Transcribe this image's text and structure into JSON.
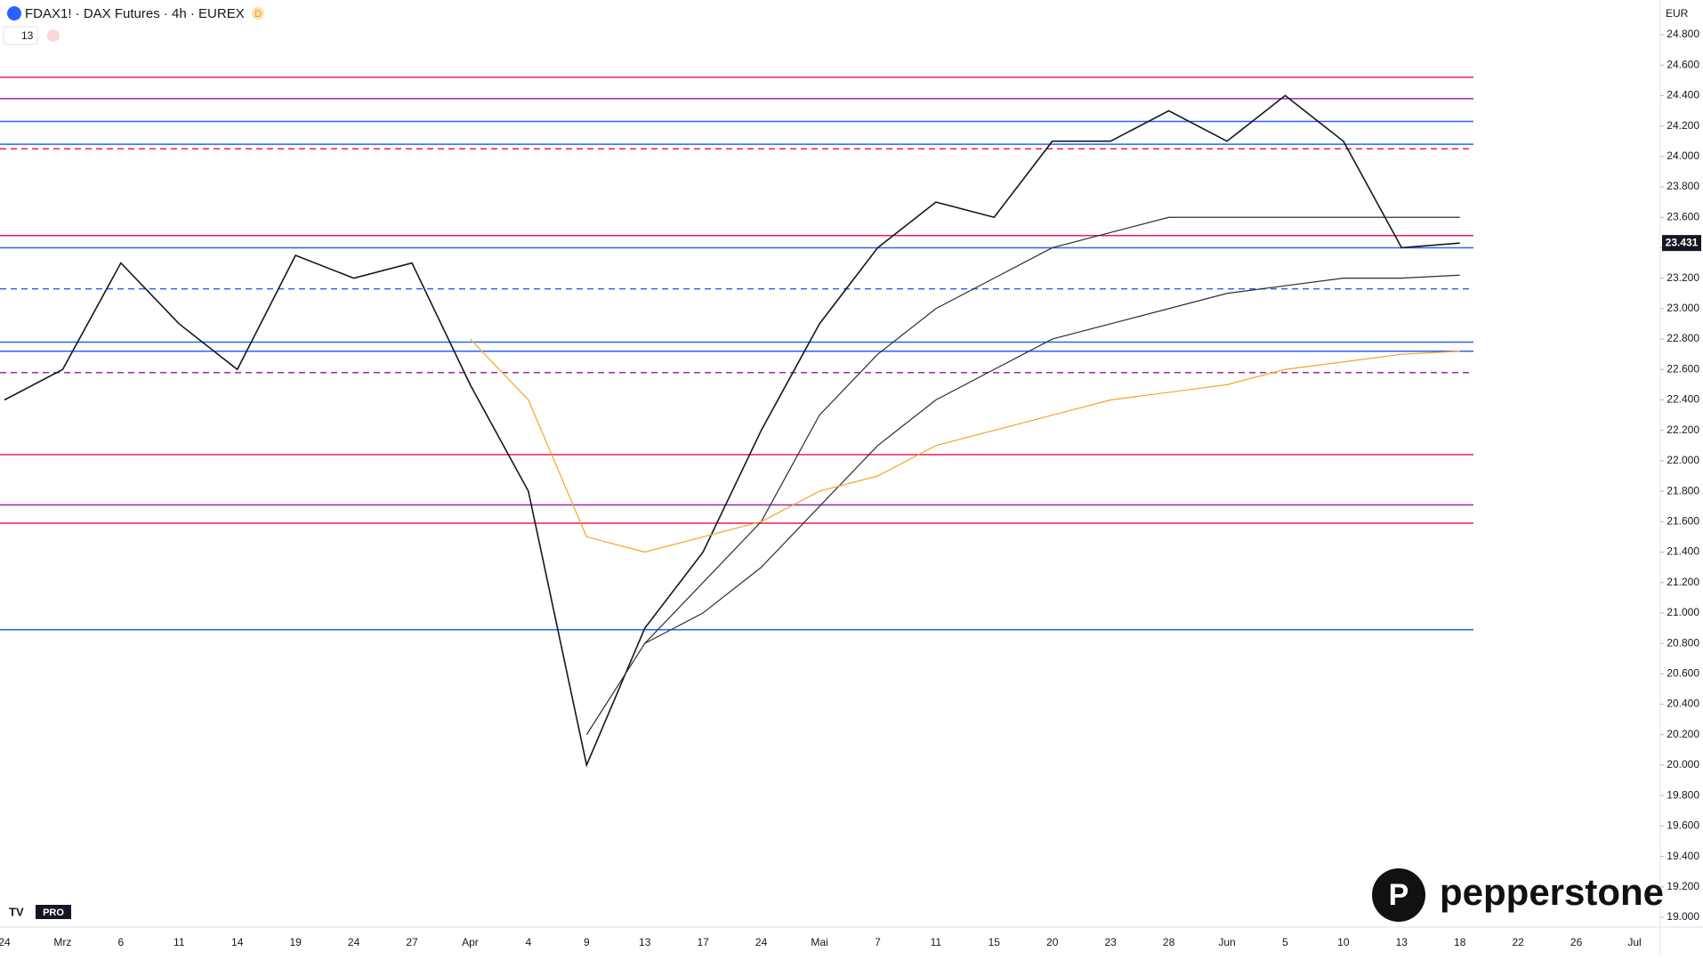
{
  "chart_data": {
    "type": "line",
    "title": "FDAX1! · DAX Futures · 4h · EUREX",
    "badge": "D",
    "indicator_count": "13",
    "currency": "EUR",
    "brand": "pepperstone",
    "tv_badge": "PRO",
    "categories": [
      "24",
      "Mrz",
      "6",
      "11",
      "14",
      "19",
      "24",
      "27",
      "Apr",
      "4",
      "9",
      "13",
      "17",
      "24",
      "Mai",
      "7",
      "11",
      "15",
      "20",
      "23",
      "28",
      "Jun",
      "5",
      "10",
      "13",
      "18",
      "22",
      "26",
      "Jul"
    ],
    "series": [
      {
        "color": "#131722",
        "values": [
          22400,
          22600,
          23300,
          22900,
          22600,
          23350,
          23200,
          23300,
          22500,
          21800,
          20000,
          20900,
          21400,
          22200,
          22900,
          23400,
          23700,
          23600,
          24100,
          24100,
          24300,
          24100,
          24400,
          24100,
          23400,
          23431,
          null,
          null,
          null
        ]
      },
      {
        "color": "#2a2e39",
        "values": [
          null,
          null,
          null,
          null,
          null,
          null,
          null,
          null,
          null,
          null,
          20200,
          20800,
          21200,
          21600,
          22300,
          22700,
          23000,
          23200,
          23400,
          23500,
          23600,
          23600,
          23600,
          23600,
          23600,
          23600,
          null,
          null,
          null
        ]
      },
      {
        "color": "#2a2e39",
        "values": [
          null,
          null,
          null,
          null,
          null,
          null,
          null,
          null,
          null,
          null,
          null,
          20800,
          21000,
          21300,
          21700,
          22100,
          22400,
          22600,
          22800,
          22900,
          23000,
          23100,
          23150,
          23200,
          23200,
          23220,
          null,
          null,
          null
        ]
      },
      {
        "color": "#f5a623",
        "values": [
          null,
          null,
          null,
          null,
          null,
          null,
          null,
          null,
          22800,
          22400,
          21500,
          21400,
          21500,
          21600,
          21800,
          21900,
          22100,
          22200,
          22300,
          22400,
          22450,
          22500,
          22600,
          22650,
          22700,
          22720,
          null,
          null,
          null
        ]
      }
    ],
    "levels": [
      {
        "value": 24520,
        "color": "#e91e63",
        "dashed": false
      },
      {
        "value": 24380,
        "color": "#9c27b0",
        "dashed": false
      },
      {
        "value": 24230,
        "color": "#2962ff",
        "dashed": false
      },
      {
        "value": 24080,
        "color": "#2962ff",
        "dashed": false
      },
      {
        "value": 24050,
        "color": "#e91e63",
        "dashed": true
      },
      {
        "value": 23480,
        "color": "#e91e63",
        "dashed": false
      },
      {
        "value": 23400,
        "color": "#2962ff",
        "dashed": false
      },
      {
        "value": 23130,
        "color": "#2962ff",
        "dashed": true
      },
      {
        "value": 22780,
        "color": "#2962ff",
        "dashed": false
      },
      {
        "value": 22720,
        "color": "#2962ff",
        "dashed": false
      },
      {
        "value": 22580,
        "color": "#9c27b0",
        "dashed": true
      },
      {
        "value": 22040,
        "color": "#e91e63",
        "dashed": false
      },
      {
        "value": 21710,
        "color": "#9c27b0",
        "dashed": false
      },
      {
        "value": 21590,
        "color": "#e91e63",
        "dashed": false
      },
      {
        "value": 20890,
        "color": "#2962ff",
        "dashed": false
      }
    ],
    "last_price": {
      "value": 23431,
      "label": "23.431"
    },
    "ylim": [
      18900,
      24900
    ],
    "yticks": [
      {
        "value": 19000,
        "label": "19.000"
      },
      {
        "value": 19200,
        "label": "19.200"
      },
      {
        "value": 19400,
        "label": "19.400"
      },
      {
        "value": 19600,
        "label": "19.600"
      },
      {
        "value": 19800,
        "label": "19.800"
      },
      {
        "value": 20000,
        "label": "20.000"
      },
      {
        "value": 20200,
        "label": "20.200"
      },
      {
        "value": 20400,
        "label": "20.400"
      },
      {
        "value": 20600,
        "label": "20.600"
      },
      {
        "value": 20800,
        "label": "20.800"
      },
      {
        "value": 21000,
        "label": "21.000"
      },
      {
        "value": 21200,
        "label": "21.200"
      },
      {
        "value": 21400,
        "label": "21.400"
      },
      {
        "value": 21600,
        "label": "21.600"
      },
      {
        "value": 21800,
        "label": "21.800"
      },
      {
        "value": 22000,
        "label": "22.000"
      },
      {
        "value": 22200,
        "label": "22.200"
      },
      {
        "value": 22400,
        "label": "22.400"
      },
      {
        "value": 22600,
        "label": "22.600"
      },
      {
        "value": 22800,
        "label": "22.800"
      },
      {
        "value": 23000,
        "label": "23.000"
      },
      {
        "value": 23200,
        "label": "23.200"
      },
      {
        "value": 23400,
        "label": "23.400"
      },
      {
        "value": 23600,
        "label": "23.600"
      },
      {
        "value": 23800,
        "label": "23.800"
      },
      {
        "value": 24000,
        "label": "24.000"
      },
      {
        "value": 24200,
        "label": "24.200"
      },
      {
        "value": 24400,
        "label": "24.400"
      },
      {
        "value": 24600,
        "label": "24.600"
      },
      {
        "value": 24800,
        "label": "24.800"
      }
    ]
  }
}
